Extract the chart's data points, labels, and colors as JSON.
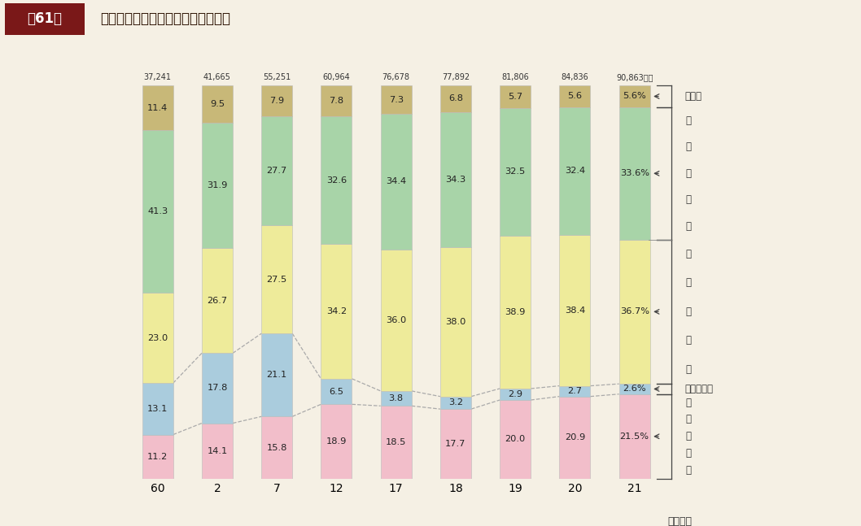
{
  "years": [
    "60",
    "2",
    "7",
    "12",
    "17",
    "18",
    "19",
    "20",
    "21"
  ],
  "totals": [
    "37,241",
    "41,665",
    "55,251",
    "60,964",
    "76,678",
    "77,892",
    "81,806",
    "84,836",
    "90,863億円"
  ],
  "categories": [
    "社会福祉費",
    "老人福祉費",
    "児童福祉費",
    "生活保護費",
    "その他"
  ],
  "data": {
    "社会福祉費": [
      11.2,
      14.1,
      15.8,
      18.9,
      18.5,
      17.7,
      20.0,
      20.9,
      21.5
    ],
    "老人福祉費": [
      13.1,
      17.8,
      21.1,
      6.5,
      3.8,
      3.2,
      2.9,
      2.7,
      2.6
    ],
    "児童福祉費": [
      23.0,
      26.7,
      27.5,
      34.2,
      36.0,
      38.0,
      38.9,
      38.4,
      36.7
    ],
    "生活保護費": [
      41.3,
      31.9,
      27.7,
      32.6,
      34.4,
      34.3,
      32.5,
      32.4,
      33.6
    ],
    "その他": [
      11.4,
      9.5,
      7.9,
      7.8,
      7.3,
      6.8,
      5.7,
      5.6,
      5.6
    ]
  },
  "colors": {
    "社会福祉費": "#F2BECA",
    "老人福祉費": "#AACCDD",
    "児童福祉費": "#EEEB9A",
    "生活保護費": "#A8D4A8",
    "その他": "#C8B878"
  },
  "background_color": "#F5F0E4",
  "header_bg": "#C0392B",
  "header_num_bg": "#7A1818",
  "figure_number": "第61図",
  "figure_title": "扶助費の目的別内訳の構成比の推移",
  "xlabel": "（年度）",
  "label_sonota": "その他",
  "label_seikatsu": "生活保護費",
  "label_jido": "児童福祉費",
  "label_rojin": "老人福祉費",
  "label_shakai": "社会福祉費"
}
